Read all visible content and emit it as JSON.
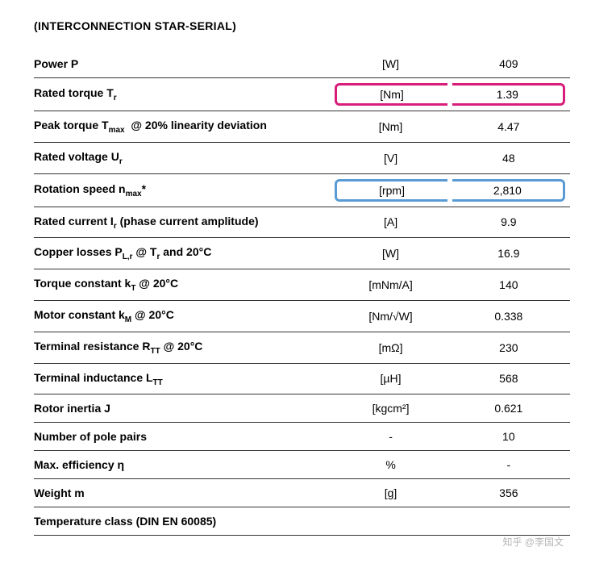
{
  "title": "(INTERCONNECTION STAR-SERIAL)",
  "highlight_colors": {
    "pink": "#d81e7a",
    "blue": "#5b9bd5"
  },
  "rows": [
    {
      "label": "Power P",
      "unit": "[W]",
      "value": "409"
    },
    {
      "label": "Rated torque T<sub>r</sub>",
      "unit": "[Nm]",
      "value": "1.39",
      "hl": "pink"
    },
    {
      "label": "Peak torque T<sub>max</sub> &nbsp;@ 20% linearity deviation",
      "unit": "[Nm]",
      "value": "4.47"
    },
    {
      "label": "Rated voltage U<sub>r</sub>",
      "unit": "[V]",
      "value": "48"
    },
    {
      "label": "Rotation speed n<sub>max</sub>*",
      "unit": "[rpm]",
      "value": "2,810",
      "hl": "blue"
    },
    {
      "label": "Rated current I<sub>r</sub> (phase current amplitude)",
      "unit": "[A]",
      "value": "9.9"
    },
    {
      "label": "Copper losses P<sub>L,r</sub> @ T<sub>r</sub> and 20°C",
      "unit": "[W]",
      "value": "16.9"
    },
    {
      "label": "Torque constant k<sub>T</sub> @ 20°C",
      "unit": "[mNm/A]",
      "value": "140"
    },
    {
      "label": "Motor constant k<sub>M</sub> @ 20°C",
      "unit": "[Nm/√W]",
      "value": "0.338"
    },
    {
      "label": "Terminal resistance R<sub>TT</sub> @ 20°C",
      "unit": "[mΩ]",
      "value": "230"
    },
    {
      "label": "Terminal inductance L<sub>TT</sub>",
      "unit": "[µH]",
      "value": "568"
    },
    {
      "label": "Rotor inertia J",
      "unit": "[kgcm²]",
      "value": "0.621"
    },
    {
      "label": "Number of pole pairs",
      "unit": "-",
      "value": "10"
    },
    {
      "label": "Max. efficiency η",
      "unit": "%",
      "value": "-"
    },
    {
      "label": "Weight m",
      "unit": "[g]",
      "value": "356"
    },
    {
      "label": "Temperature class (DIN EN 60085)",
      "unit": "",
      "value": ""
    }
  ],
  "watermark": "知乎 @李国文"
}
